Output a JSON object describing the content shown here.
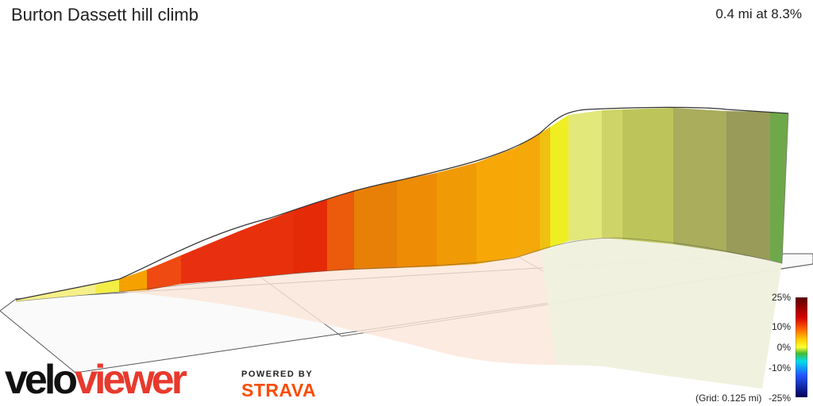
{
  "header": {
    "title": "Burton Dassett hill climb",
    "stat": "0.4 mi at 8.3%"
  },
  "branding": {
    "logo_velo": "velo",
    "logo_viewer": "viewer",
    "powered_by": "POWERED BY",
    "strava": "STRAVA"
  },
  "legend": {
    "labels": [
      "25%",
      "10%",
      "0%",
      "-10%",
      "-25%"
    ],
    "grid_note": "(Grid: 0.125 mi)"
  },
  "colors": {
    "velo": "#111111",
    "viewer": "#e8392d",
    "strava": "#fc4c02",
    "gradient_stops": [
      "#5a0000",
      "#d40000",
      "#ff3300",
      "#ff9900",
      "#ffff00",
      "#55bb33",
      "#00ccdd",
      "#2266ff",
      "#000066"
    ]
  }
}
